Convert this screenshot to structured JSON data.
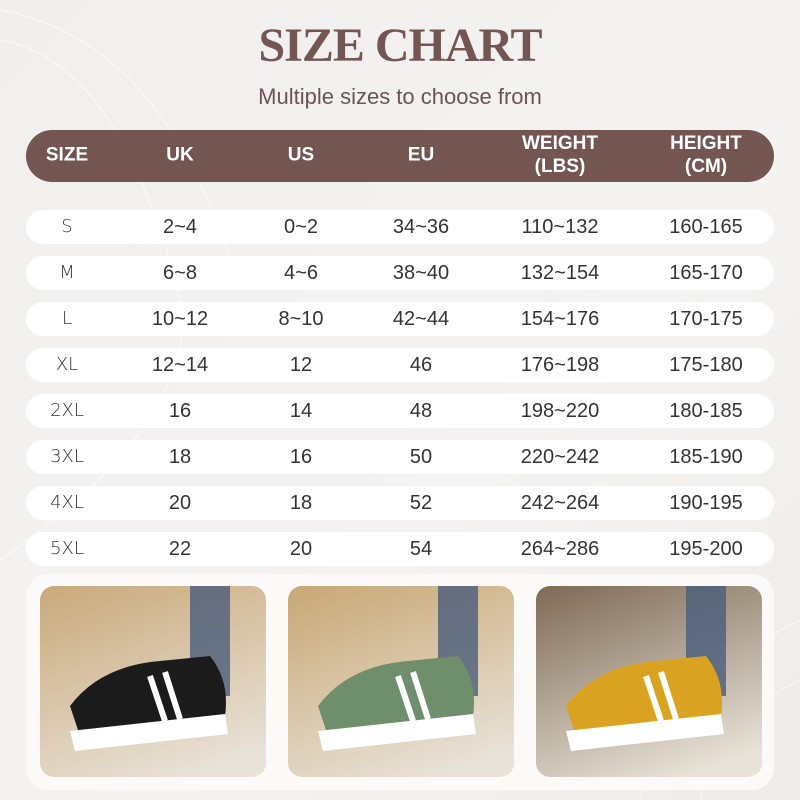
{
  "title": "SIZE CHART",
  "subtitle": "Multiple sizes to choose from",
  "accent_color": "#735651",
  "headers": [
    "SIZE",
    "UK",
    "US",
    "EU",
    "WEIGHT\n(LBS)",
    "HEIGHT\n(CM)"
  ],
  "header_lines": [
    [
      "SIZE"
    ],
    [
      "UK"
    ],
    [
      "US"
    ],
    [
      "EU"
    ],
    [
      "WEIGHT",
      "(LBS)"
    ],
    [
      "HEIGHT",
      "(CM)"
    ]
  ],
  "rows": [
    [
      "S",
      "2~4",
      "0~2",
      "34~36",
      "110~132",
      "160-165"
    ],
    [
      "M",
      "6~8",
      "4~6",
      "38~40",
      "132~154",
      "165-170"
    ],
    [
      "L",
      "10~12",
      "8~10",
      "42~44",
      "154~176",
      "170-175"
    ],
    [
      "XL",
      "12~14",
      "12",
      "46",
      "176~198",
      "175-180"
    ],
    [
      "2XL",
      "16",
      "14",
      "48",
      "198~220",
      "180-185"
    ],
    [
      "3XL",
      "18",
      "16",
      "50",
      "220~242",
      "185-190"
    ],
    [
      "4XL",
      "20",
      "18",
      "52",
      "242~264",
      "190-195"
    ],
    [
      "5XL",
      "22",
      "20",
      "54",
      "264~286",
      "195-200"
    ]
  ],
  "photos": [
    {
      "name": "black-sneakers-photo",
      "shoe": "#1b1b1b",
      "bg": "#c9a97a"
    },
    {
      "name": "green-sneakers-photo",
      "shoe": "#6f8e6c",
      "bg": "#c8a774"
    },
    {
      "name": "yellow-sneakers-photo",
      "shoe": "#d9a321",
      "bg": "#7d6a55"
    }
  ]
}
